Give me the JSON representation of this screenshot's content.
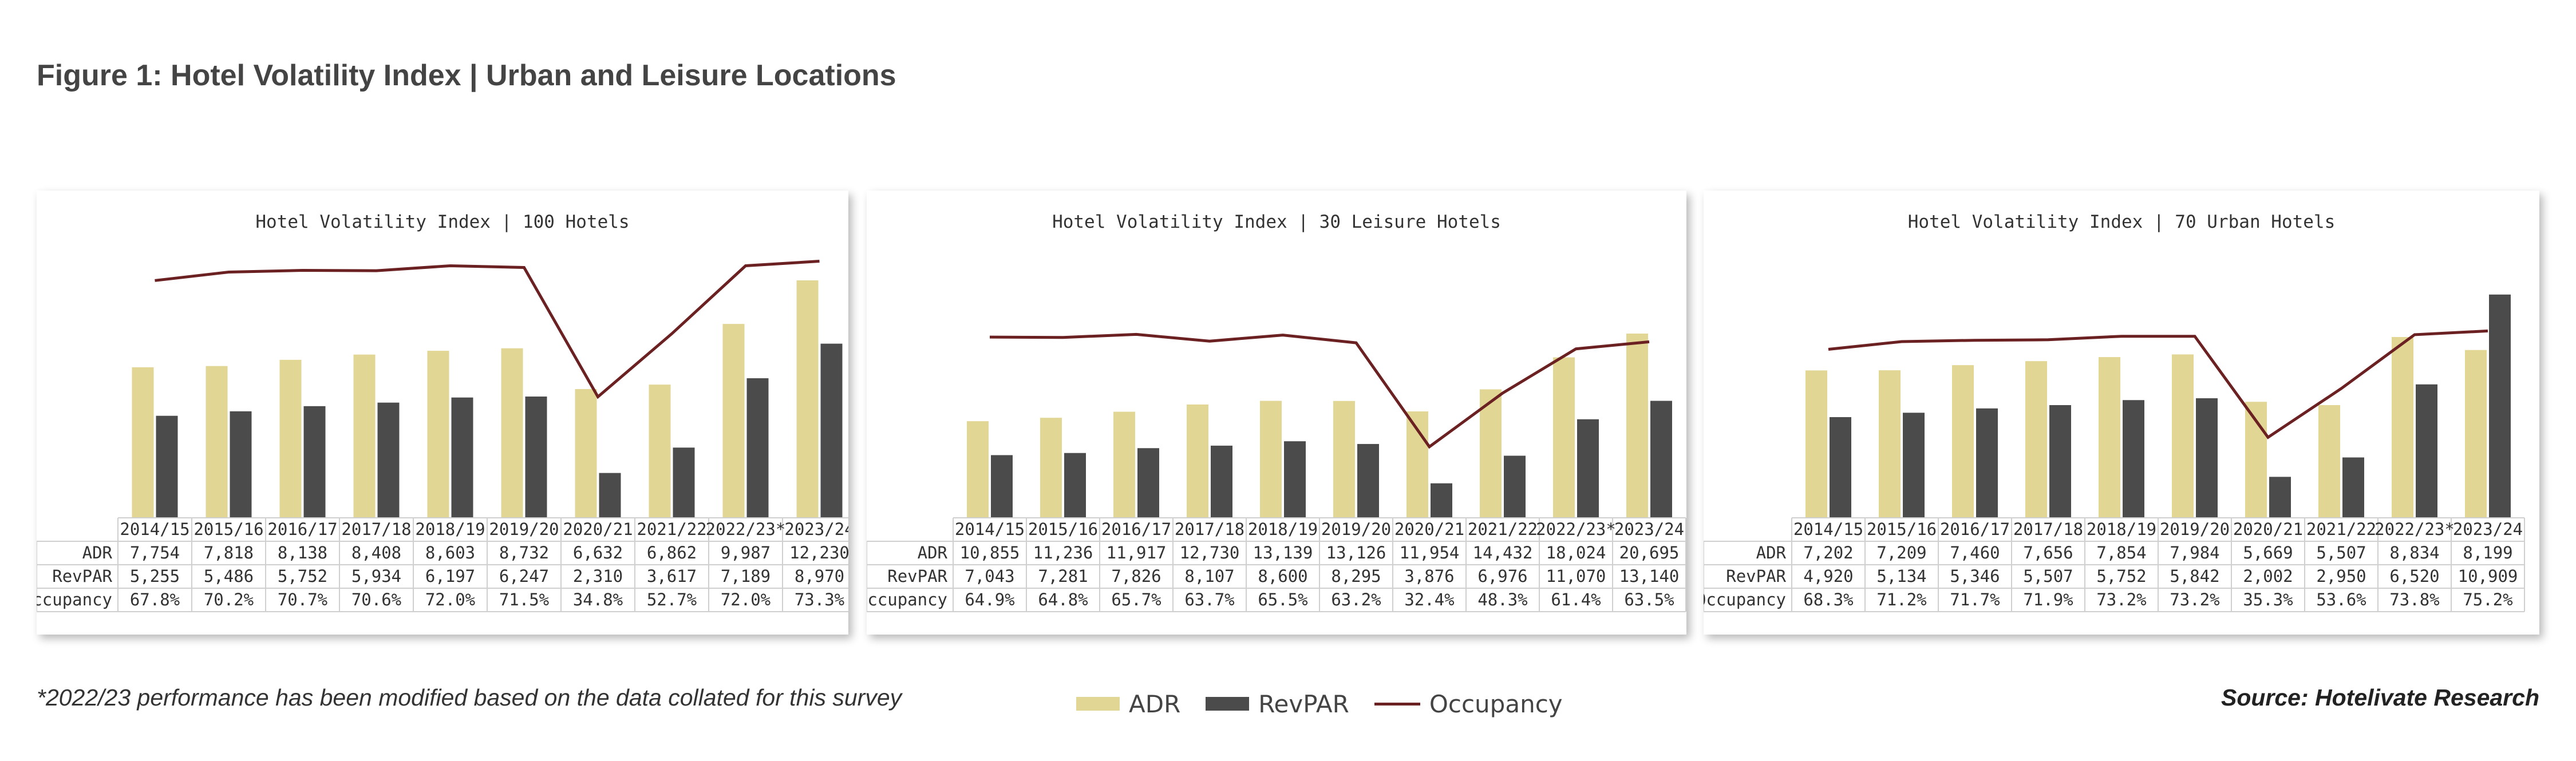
{
  "figure_title": "Figure 1: Hotel Volatility Index | Urban and Leisure Locations",
  "footnote": "*2022/23 performance has been modified based on the data collated for this survey",
  "source": "Source: Hotelivate Research",
  "legend": {
    "adr": "ADR",
    "revpar": "RevPAR",
    "occupancy": "Occupancy"
  },
  "colors": {
    "adr": "#E2D695",
    "revpar": "#4B4B4B",
    "occupancy": "#6B2022",
    "grid": "#cfcfcf"
  },
  "row_labels": [
    "ADR",
    "RevPAR",
    "Occupancy"
  ],
  "chart_data": [
    {
      "type": "bar",
      "title": "Hotel Volatility Index | 100 Hotels",
      "categories": [
        "2014/15",
        "2015/16",
        "2016/17",
        "2017/18",
        "2018/19",
        "2019/20",
        "2020/21",
        "2021/22",
        "2022/23*",
        "2023/24"
      ],
      "series": [
        {
          "name": "ADR",
          "values": [
            7754,
            7818,
            8138,
            8408,
            8603,
            8732,
            6632,
            6862,
            9987,
            12230
          ],
          "labels": [
            "7,754",
            "7,818",
            "8,138",
            "8,408",
            "8,603",
            "8,732",
            "6,632",
            "6,862",
            "9,987",
            "12,230"
          ]
        },
        {
          "name": "RevPAR",
          "values": [
            5255,
            5486,
            5752,
            5934,
            6197,
            6247,
            2310,
            3617,
            7189,
            8970
          ],
          "labels": [
            "5,255",
            "5,486",
            "5,752",
            "5,934",
            "6,197",
            "6,247",
            "2,310",
            "3,617",
            "7,189",
            "8,970"
          ]
        },
        {
          "name": "Occupancy",
          "type": "line",
          "values": [
            67.8,
            70.2,
            70.7,
            70.6,
            72.0,
            71.5,
            34.8,
            52.7,
            72.0,
            73.3
          ],
          "labels": [
            "67.8%",
            "70.2%",
            "70.7%",
            "70.6%",
            "72.0%",
            "71.5%",
            "34.8%",
            "52.7%",
            "72.0%",
            "73.3%"
          ]
        }
      ]
    },
    {
      "type": "bar",
      "title": "Hotel Volatility Index | 30 Leisure Hotels",
      "categories": [
        "2014/15",
        "2015/16",
        "2016/17",
        "2017/18",
        "2018/19",
        "2019/20",
        "2020/21",
        "2021/22",
        "2022/23*",
        "2023/24"
      ],
      "series": [
        {
          "name": "ADR",
          "values": [
            10855,
            11236,
            11917,
            12730,
            13139,
            13126,
            11954,
            14432,
            18024,
            20695
          ],
          "labels": [
            "10,855",
            "11,236",
            "11,917",
            "12,730",
            "13,139",
            "13,126",
            "11,954",
            "14,432",
            "18,024",
            "20,695"
          ]
        },
        {
          "name": "RevPAR",
          "values": [
            7043,
            7281,
            7826,
            8107,
            8600,
            8295,
            3876,
            6976,
            11070,
            13140
          ],
          "labels": [
            "7,043",
            "7,281",
            "7,826",
            "8,107",
            "8,600",
            "8,295",
            "3,876",
            "6,976",
            "11,070",
            "13,140"
          ]
        },
        {
          "name": "Occupancy",
          "type": "line",
          "values": [
            64.9,
            64.8,
            65.7,
            63.7,
            65.5,
            63.2,
            32.4,
            48.3,
            61.4,
            63.5
          ],
          "labels": [
            "64.9%",
            "64.8%",
            "65.7%",
            "63.7%",
            "65.5%",
            "63.2%",
            "32.4%",
            "48.3%",
            "61.4%",
            "63.5%"
          ]
        }
      ]
    },
    {
      "type": "bar",
      "title": "Hotel Volatility Index | 70 Urban Hotels",
      "categories": [
        "2014/15",
        "2015/16",
        "2016/17",
        "2017/18",
        "2018/19",
        "2019/20",
        "2020/21",
        "2021/22",
        "2022/23*",
        "2023/24"
      ],
      "series": [
        {
          "name": "ADR",
          "values": [
            7202,
            7209,
            7460,
            7656,
            7854,
            7984,
            5669,
            5507,
            8834,
            8199
          ],
          "labels": [
            "7,202",
            "7,209",
            "7,460",
            "7,656",
            "7,854",
            "7,984",
            "5,669",
            "5,507",
            "8,834",
            "8,199"
          ]
        },
        {
          "name": "RevPAR",
          "values": [
            4920,
            5134,
            5346,
            5507,
            5752,
            5842,
            2002,
            2950,
            6520,
            10909
          ],
          "labels": [
            "4,920",
            "5,134",
            "5,346",
            "5,507",
            "5,752",
            "5,842",
            "2,002",
            "2,950",
            "6,520",
            "10,909"
          ]
        },
        {
          "name": "Occupancy",
          "type": "line",
          "values": [
            68.3,
            71.2,
            71.7,
            71.9,
            73.2,
            73.2,
            35.3,
            53.6,
            73.8,
            75.2
          ],
          "labels": [
            "68.3%",
            "71.2%",
            "71.7%",
            "71.9%",
            "73.2%",
            "73.2%",
            "35.3%",
            "53.6%",
            "73.8%",
            "75.2%"
          ]
        }
      ]
    }
  ]
}
